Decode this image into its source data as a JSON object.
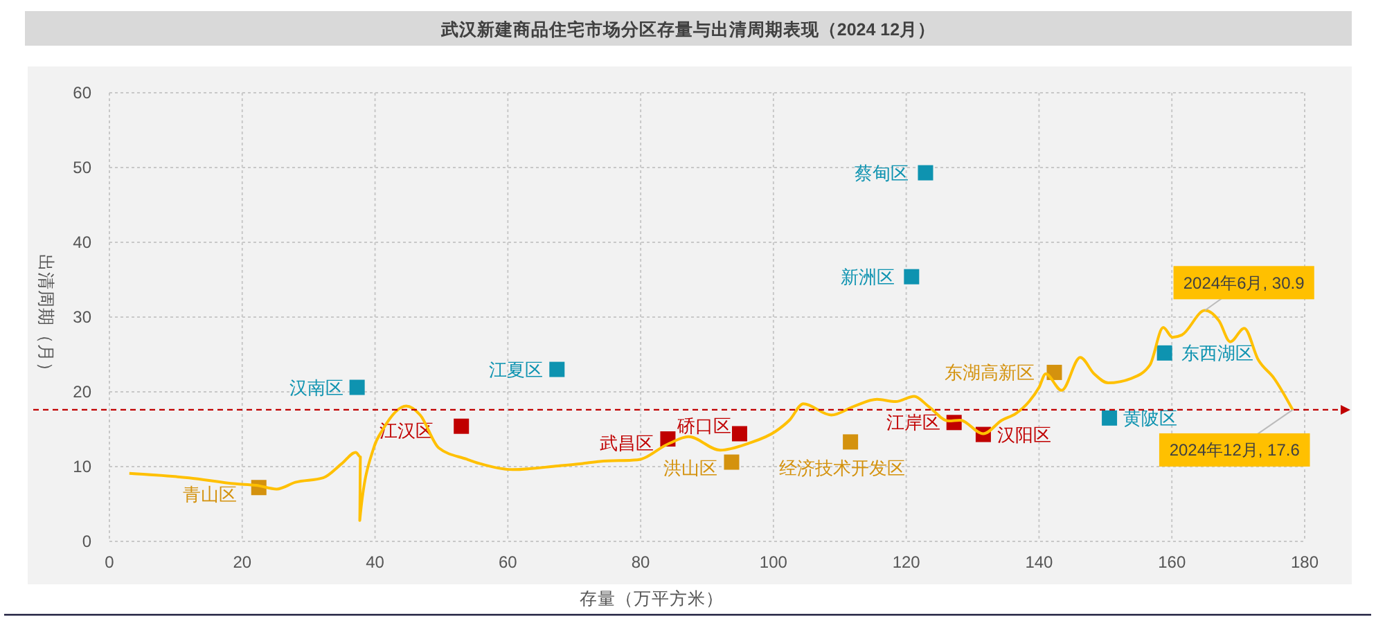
{
  "chart_data": {
    "type": "scatter",
    "title": "武汉新建商品住宅市场分区存量与出清周期表现（2024 12月）",
    "xlabel": "存量（万平方米）",
    "ylabel": "出清周期（月）",
    "xlim": [
      0,
      180
    ],
    "xticks": [
      0,
      20,
      40,
      60,
      80,
      100,
      120,
      140,
      160,
      180
    ],
    "ylim": [
      0,
      60
    ],
    "yticks": [
      0,
      10,
      20,
      30,
      40,
      50,
      60
    ],
    "grid": true,
    "marker": "square",
    "ref_lines": [
      {
        "axis": "y",
        "value": 17.6,
        "color": "#c00000",
        "line_style": "dashed"
      }
    ],
    "annotations": [
      {
        "text": "2024年6月, 30.9",
        "x": 165.0,
        "y": 30.9
      },
      {
        "text": "2024年12月, 17.6",
        "x": 178.2,
        "y": 17.6
      }
    ],
    "series": [
      {
        "type": "line",
        "color": "#ffc000",
        "marker": "none",
        "x": [
          3.0,
          12.0,
          19.0,
          22.1,
          25.2,
          28.0,
          32.2,
          35.0,
          37.1,
          37.8,
          37.7,
          39.8,
          41.2,
          44.7,
          46.8,
          49.6,
          53.8,
          55.8,
          60.7,
          67.6,
          71.1,
          73.9,
          79.5,
          84.3,
          87.2,
          92.0,
          96.2,
          100.3,
          102.4,
          104.5,
          108.7,
          112.2,
          115.6,
          118.4,
          121.2,
          123.3,
          126.4,
          128.1,
          131.6,
          134.4,
          136.5,
          138.5,
          140.0,
          141.0,
          143.4,
          146.2,
          148.3,
          150.4,
          153.9,
          156.7,
          158.7,
          160.1,
          161.5,
          165.0,
          167.1,
          168.8,
          170.9,
          173.0,
          175.4,
          178.2
        ],
        "values": [
          9.1,
          8.5,
          7.7,
          7.5,
          7.0,
          7.9,
          8.5,
          10.4,
          11.9,
          11.3,
          2.8,
          12.5,
          15.0,
          18.1,
          16.9,
          12.5,
          11.0,
          10.4,
          9.6,
          10.1,
          10.4,
          10.7,
          10.9,
          13.1,
          14.0,
          12.2,
          13.1,
          14.7,
          16.2,
          18.4,
          16.9,
          18.1,
          19.0,
          18.7,
          19.4,
          18.1,
          16.1,
          16.2,
          14.4,
          16.2,
          17.1,
          18.7,
          20.6,
          22.4,
          20.2,
          24.6,
          22.4,
          21.2,
          21.8,
          23.6,
          28.6,
          27.3,
          27.6,
          30.9,
          29.5,
          26.7,
          28.5,
          24.3,
          21.8,
          17.6
        ]
      },
      {
        "name": "青山区",
        "color": "#d4920e",
        "x": [
          22.5
        ],
        "values": [
          7.2
        ]
      },
      {
        "name": "汉南区",
        "color": "#0e93b0",
        "x": [
          37.3
        ],
        "values": [
          20.6
        ]
      },
      {
        "name": "江汉区",
        "color": "#c00000",
        "x": [
          53.0
        ],
        "values": [
          15.4
        ]
      },
      {
        "name": "江夏区",
        "color": "#0e93b0",
        "x": [
          67.4
        ],
        "values": [
          23.0
        ]
      },
      {
        "name": "武昌区",
        "color": "#c00000",
        "x": [
          84.1
        ],
        "values": [
          13.7
        ]
      },
      {
        "name": "硚口区",
        "color": "#c00000",
        "x": [
          94.9
        ],
        "values": [
          14.4
        ]
      },
      {
        "name": "洪山区",
        "color": "#d4920e",
        "x": [
          93.7
        ],
        "values": [
          10.6
        ]
      },
      {
        "name": "经济技术开发区",
        "color": "#d4920e",
        "x": [
          111.6
        ],
        "values": [
          13.3
        ]
      },
      {
        "name": "蔡甸区",
        "color": "#0e93b0",
        "x": [
          122.9
        ],
        "values": [
          49.3
        ]
      },
      {
        "name": "新洲区",
        "color": "#0e93b0",
        "x": [
          120.8
        ],
        "values": [
          35.4
        ]
      },
      {
        "name": "江岸区",
        "color": "#c00000",
        "x": [
          127.2
        ],
        "values": [
          15.9
        ]
      },
      {
        "name": "汉阳区",
        "color": "#c00000",
        "x": [
          131.6
        ],
        "values": [
          14.3
        ]
      },
      {
        "name": "东湖高新区",
        "color": "#d4920e",
        "x": [
          142.3
        ],
        "values": [
          22.6
        ]
      },
      {
        "name": "黄陂区",
        "color": "#0e93b0",
        "x": [
          150.6
        ],
        "values": [
          16.5
        ]
      },
      {
        "name": "东西湖区",
        "color": "#0e93b0",
        "x": [
          158.9
        ],
        "values": [
          25.2
        ]
      }
    ]
  }
}
